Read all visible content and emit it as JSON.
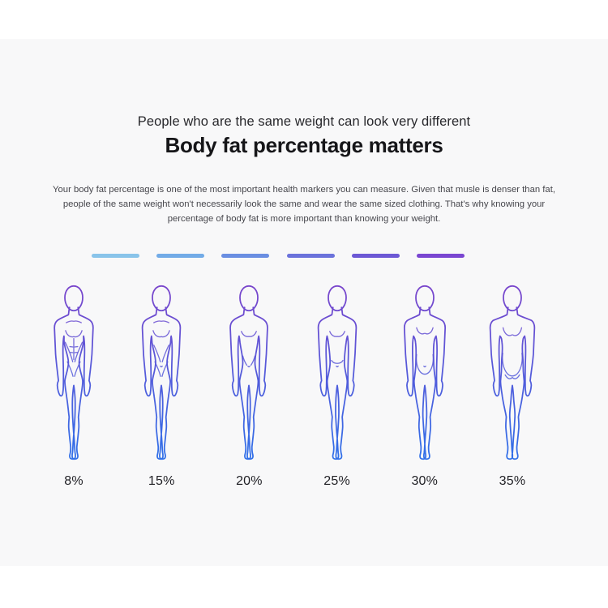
{
  "hero": {
    "subtitle": "People who are the same weight can look very different",
    "title": "Body fat percentage matters",
    "description": "Your body fat percentage is one of the most important health markers you can measure. Given that musle is denser than fat, people of the same weight won't necessarily look the same and wear the same sized clothing. That's why knowing your percentage of body fat is more important than knowing your weight."
  },
  "divider": {
    "colors": [
      "#89C4EA",
      "#72ABE7",
      "#6A8EE2",
      "#6B72DB",
      "#6C58D5",
      "#7A46D1"
    ]
  },
  "figures": [
    {
      "label": "8%",
      "icon": "body-outline-lean-muscular-icon"
    },
    {
      "label": "15%",
      "icon": "body-outline-athletic-icon"
    },
    {
      "label": "20%",
      "icon": "body-outline-fit-icon"
    },
    {
      "label": "25%",
      "icon": "body-outline-average-icon"
    },
    {
      "label": "30%",
      "icon": "body-outline-rounded-icon"
    },
    {
      "label": "35%",
      "icon": "body-outline-heavy-icon"
    }
  ],
  "colors": {
    "panel_background": "#f8f8f9",
    "figure_gradient_top": "#7B44CB",
    "figure_gradient_bottom": "#2F70E9",
    "title_color": "#161619",
    "text_color": "#47474d"
  }
}
